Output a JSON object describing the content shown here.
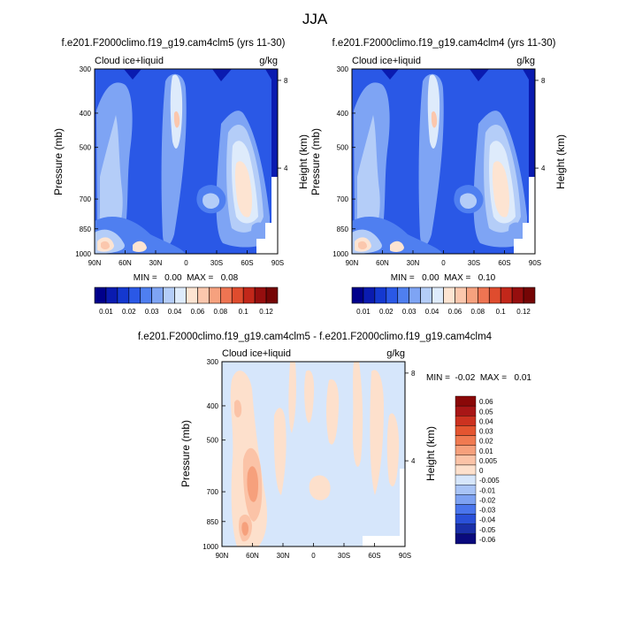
{
  "figure_title": "JJA",
  "palettes": {
    "abs": [
      "#00008b",
      "#0a1bb0",
      "#1438d0",
      "#2a58e6",
      "#4f7ff0",
      "#7ea4f4",
      "#b4cdf8",
      "#deebfb",
      "#fde4d2",
      "#fbc7ad",
      "#f6a17e",
      "#ee7452",
      "#df4c2e",
      "#c2271a",
      "#960e0e",
      "#750505"
    ],
    "diff": [
      "#0a0a7d",
      "#1a2fa8",
      "#2a50d8",
      "#4a75ec",
      "#7ea2f2",
      "#a9c4f6",
      "#d6e6fb",
      "#fde0cc",
      "#fbc3a7",
      "#f6a07c",
      "#f07a51",
      "#e45530",
      "#cc3220",
      "#a81616",
      "#8a0808"
    ]
  },
  "chart_data": [
    {
      "id": "cam4clm5",
      "type": "heatmap",
      "title": "f.e201.F2000climo.f19_g19.cam4clm5 (yrs 11-30)",
      "left_label": "Cloud ice+liquid",
      "units": "g/kg",
      "ylabel": "Pressure (mb)",
      "y2label": "Height (km)",
      "x_ticks": [
        "90N",
        "60N",
        "30N",
        "0",
        "30S",
        "60S",
        "90S"
      ],
      "x_range": [
        90,
        -90
      ],
      "y_ticks": [
        300,
        400,
        500,
        700,
        850,
        1000
      ],
      "y2_ticks": [
        8,
        4
      ],
      "y_range": [
        300,
        1000
      ],
      "stats": "MIN =   0.00  MAX =   0.08",
      "min": 0.0,
      "max": 0.08,
      "colorbar_labels": [
        "0.01",
        "0.02",
        "0.03",
        "0.04",
        "0.06",
        "0.08",
        "0.1",
        "0.12"
      ],
      "levels": [
        0.005,
        0.01,
        0.015,
        0.02,
        0.025,
        0.03,
        0.035,
        0.04,
        0.05,
        0.06,
        0.07,
        0.08,
        0.09,
        0.1,
        0.12
      ]
    },
    {
      "id": "cam4clm4",
      "type": "heatmap",
      "title": "f.e201.F2000climo.f19_g19.cam4clm4 (yrs 11-30)",
      "left_label": "Cloud ice+liquid",
      "units": "g/kg",
      "ylabel": "Pressure (mb)",
      "y2label": "Height (km)",
      "x_ticks": [
        "90N",
        "60N",
        "30N",
        "0",
        "30S",
        "60S",
        "90S"
      ],
      "x_range": [
        90,
        -90
      ],
      "y_ticks": [
        300,
        400,
        500,
        700,
        850,
        1000
      ],
      "y2_ticks": [
        8,
        4
      ],
      "y_range": [
        300,
        1000
      ],
      "stats": "MIN =   0.00  MAX =   0.10",
      "min": 0.0,
      "max": 0.1,
      "colorbar_labels": [
        "0.01",
        "0.02",
        "0.03",
        "0.04",
        "0.06",
        "0.08",
        "0.1",
        "0.12"
      ],
      "levels": [
        0.005,
        0.01,
        0.015,
        0.02,
        0.025,
        0.03,
        0.035,
        0.04,
        0.05,
        0.06,
        0.07,
        0.08,
        0.09,
        0.1,
        0.12
      ]
    },
    {
      "id": "difference",
      "type": "heatmap",
      "title": "f.e201.F2000climo.f19_g19.cam4clm5 - f.e201.F2000climo.f19_g19.cam4clm4",
      "left_label": "Cloud ice+liquid",
      "units": "g/kg",
      "ylabel": "Pressure (mb)",
      "y2label": "Height (km)",
      "x_ticks": [
        "90N",
        "60N",
        "30N",
        "0",
        "30S",
        "60S",
        "90S"
      ],
      "x_range": [
        90,
        -90
      ],
      "y_ticks": [
        300,
        400,
        500,
        700,
        850,
        1000
      ],
      "y2_ticks": [
        8,
        4
      ],
      "y_range": [
        300,
        1000
      ],
      "stats": "MIN =  -0.02  MAX =   0.01",
      "min": -0.02,
      "max": 0.01,
      "colorbar_labels": [
        "0.06",
        "0.05",
        "0.04",
        "0.03",
        "0.02",
        "0.01",
        "0.005",
        "0",
        "-0.005",
        "-0.01",
        "-0.02",
        "-0.03",
        "-0.04",
        "-0.05",
        "-0.06"
      ],
      "levels": [
        -0.06,
        -0.05,
        -0.04,
        -0.03,
        -0.02,
        -0.01,
        -0.005,
        0,
        0.005,
        0.01,
        0.02,
        0.03,
        0.04,
        0.05,
        0.06
      ]
    }
  ]
}
